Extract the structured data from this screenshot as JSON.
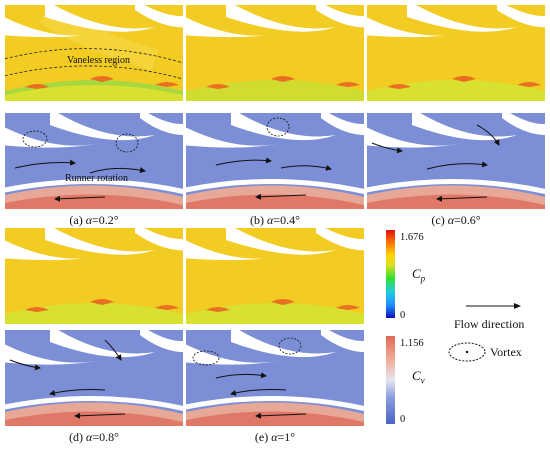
{
  "panels": [
    {
      "id": "a",
      "caption_prefix": "(a) ",
      "alpha_sym": "α",
      "caption_value": "=0.2°"
    },
    {
      "id": "b",
      "caption_prefix": "(b) ",
      "alpha_sym": "α",
      "caption_value": "=0.4°"
    },
    {
      "id": "c",
      "caption_prefix": "(c) ",
      "alpha_sym": "α",
      "caption_value": "=0.6°"
    },
    {
      "id": "d",
      "caption_prefix": "(d) ",
      "alpha_sym": "α",
      "caption_value": "=0.8°"
    },
    {
      "id": "e",
      "caption_prefix": "(e) ",
      "alpha_sym": "α",
      "caption_value": "=1°"
    }
  ],
  "annotations": {
    "vaneless_region": "Vaneless region",
    "runner_rotation": "Runner rotation"
  },
  "colorbar_cp": {
    "symbol": "C",
    "sub": "p",
    "max": "1.676",
    "min": "0",
    "colors": [
      "#1010c0",
      "#1e90ff",
      "#20d0e0",
      "#30e030",
      "#d8e020",
      "#ffd000",
      "#ff7000",
      "#e01010"
    ]
  },
  "colorbar_cv": {
    "symbol": "C",
    "sub": "v",
    "max": "1.156",
    "min": "0",
    "colors": [
      "#4a62c8",
      "#8a9ee0",
      "#e6e6ee",
      "#f0a890",
      "#e06858"
    ]
  },
  "legend": {
    "flow_direction": "Flow direction",
    "vortex": "Vortex"
  },
  "colors": {
    "pressure_bg": "#f2cc22",
    "vane": "#ffffff",
    "velocity_bg": "#7c8fd6"
  }
}
